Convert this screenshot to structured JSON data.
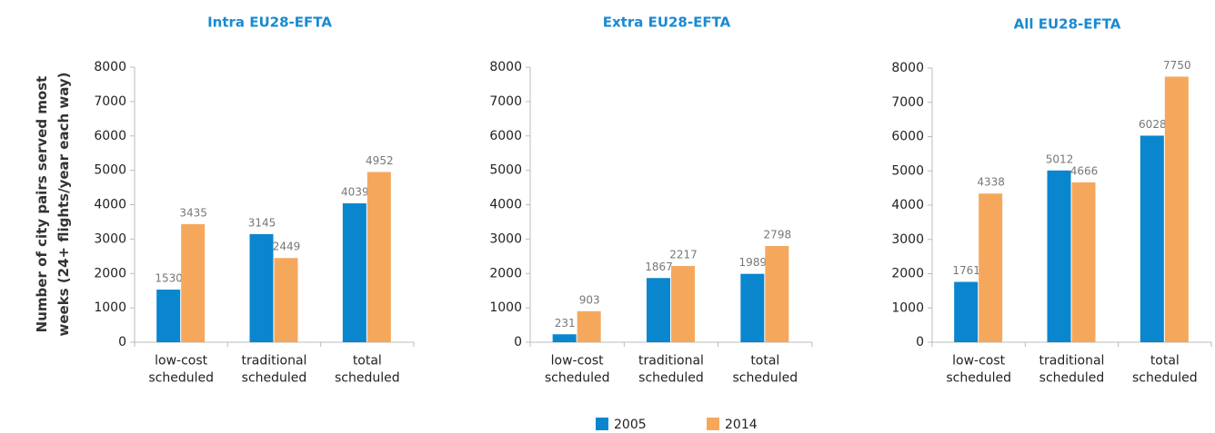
{
  "chart_data": [
    {
      "type": "bar",
      "title": "Intra EU28-EFTA",
      "y_label": "Number of city pairs served most\nweeks (24+ flights/year each way)",
      "categories": [
        "low-cost\nscheduled",
        "traditional\nscheduled",
        "total\nscheduled"
      ],
      "series": [
        {
          "name": "2005",
          "color": "#0a86cf",
          "values": [
            1530,
            3145,
            4039
          ]
        },
        {
          "name": "2014",
          "color": "#f5a85c",
          "values": [
            3435,
            2449,
            4952
          ]
        }
      ],
      "ylim": [
        0,
        8000
      ],
      "yticks": [
        0,
        1000,
        2000,
        3000,
        4000,
        5000,
        6000,
        7000,
        8000
      ],
      "grid": false
    },
    {
      "type": "bar",
      "title": "Extra EU28-EFTA",
      "categories": [
        "low-cost\nscheduled",
        "traditional\nscheduled",
        "total\nscheduled"
      ],
      "series": [
        {
          "name": "2005",
          "color": "#0a86cf",
          "values": [
            231,
            1867,
            1989
          ]
        },
        {
          "name": "2014",
          "color": "#f5a85c",
          "values": [
            903,
            2217,
            2798
          ]
        }
      ],
      "ylim": [
        0,
        8000
      ],
      "yticks": [
        0,
        1000,
        2000,
        3000,
        4000,
        5000,
        6000,
        7000,
        8000
      ],
      "grid": false
    },
    {
      "type": "bar",
      "title": "All EU28-EFTA",
      "categories": [
        "low-cost\nscheduled",
        "traditional\nscheduled",
        "total\nscheduled"
      ],
      "series": [
        {
          "name": "2005",
          "color": "#0a86cf",
          "values": [
            1761,
            5012,
            6028
          ]
        },
        {
          "name": "2014",
          "color": "#f5a85c",
          "values": [
            4338,
            4666,
            7750
          ]
        }
      ],
      "ylim": [
        0,
        8000
      ],
      "yticks": [
        0,
        1000,
        2000,
        3000,
        4000,
        5000,
        6000,
        7000,
        8000
      ],
      "grid": false
    }
  ]
}
